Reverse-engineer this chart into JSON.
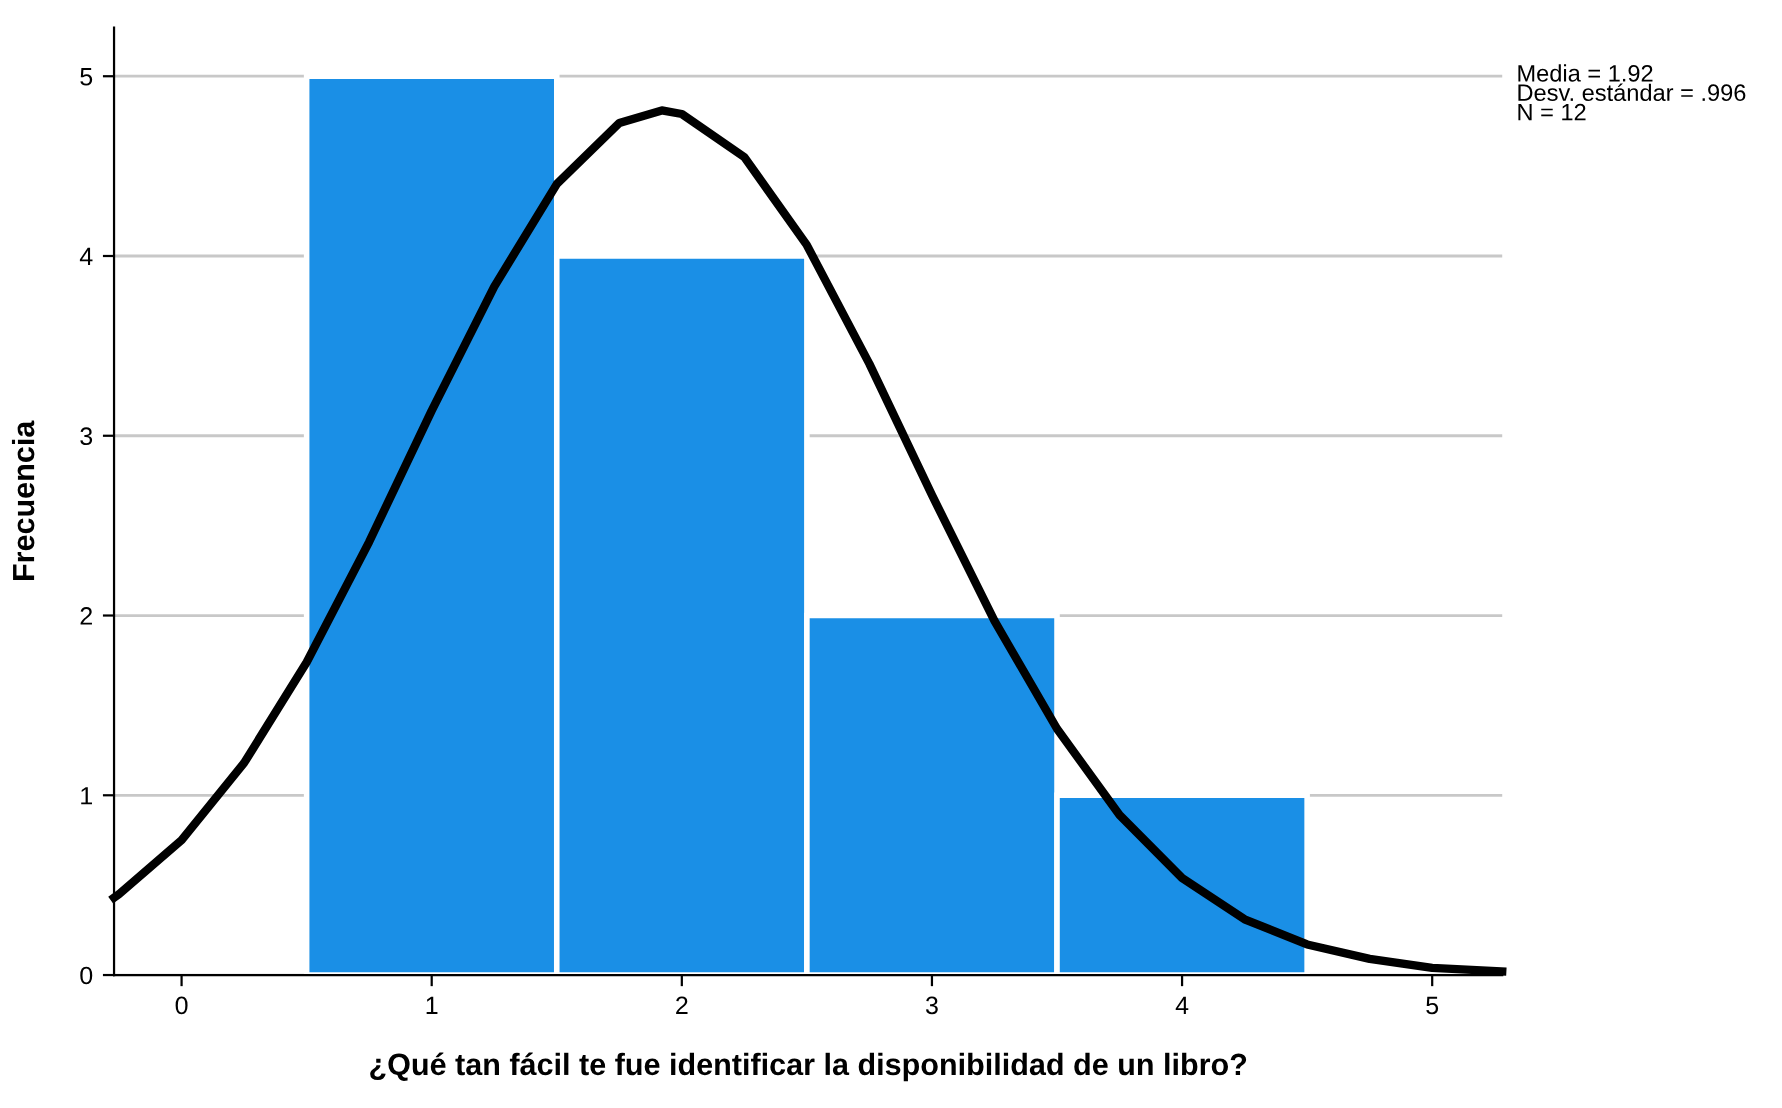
{
  "chart_data": {
    "type": "histogram",
    "xlabel": "¿Qué tan fácil te fue identificar la disponibilidad de un libro?",
    "ylabel": "Frecuencia",
    "series": [
      {
        "bins": [
          0.5,
          1.5,
          2.5,
          3.5,
          4.5
        ],
        "values": [
          5,
          4,
          2,
          1
        ],
        "color": "#1a8fe6"
      },
      {
        "type": "line",
        "color": "#000000",
        "x": [
          -0.27,
          -0.25,
          0,
          0.25,
          0.5,
          0.75,
          1.0,
          1.25,
          1.5,
          1.75,
          1.92,
          2.0,
          2.25,
          2.5,
          2.75,
          3.0,
          3.25,
          3.5,
          3.75,
          4.0,
          4.25,
          4.5,
          4.75,
          5.0,
          5.28
        ],
        "values": [
          0.43,
          0.45,
          0.75,
          1.18,
          1.74,
          2.41,
          3.14,
          3.83,
          4.4,
          4.74,
          4.81,
          4.79,
          4.55,
          4.06,
          3.4,
          2.67,
          1.97,
          1.37,
          0.89,
          0.54,
          0.31,
          0.17,
          0.09,
          0.04,
          0.02
        ]
      }
    ],
    "xlim": [
      -0.27,
      5.28
    ],
    "ylim": [
      0,
      5.27
    ],
    "xticks": [
      0,
      1,
      2,
      3,
      4,
      5
    ],
    "yticks": [
      0,
      1,
      2,
      3,
      4,
      5
    ],
    "grid": "y",
    "legend": false,
    "marker": "none",
    "line_style": "solid",
    "annotations": [
      "Media = 1.92",
      "Desv. estándar = .996",
      "N = 12"
    ]
  }
}
